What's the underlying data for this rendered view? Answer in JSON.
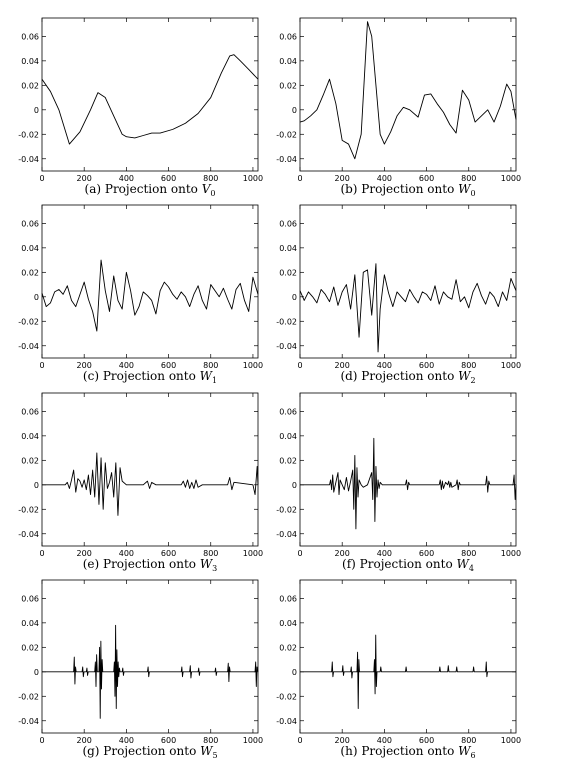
{
  "chart_data": [
    {
      "type": "line",
      "caption": {
        "prefix": "(a) Projection onto ",
        "symbol": "V",
        "subscript": "0"
      },
      "xlim": [
        0,
        1024
      ],
      "ylim": [
        -0.05,
        0.075
      ],
      "xticks": [
        0,
        200,
        400,
        600,
        800,
        1000
      ],
      "yticks": [
        -0.04,
        -0.02,
        0,
        0.02,
        0.04,
        0.06
      ],
      "x": [
        0,
        40,
        80,
        130,
        180,
        230,
        265,
        300,
        340,
        380,
        400,
        440,
        480,
        520,
        560,
        620,
        680,
        740,
        800,
        850,
        890,
        910,
        940,
        980,
        1024
      ],
      "y": [
        0.025,
        0.015,
        0.0,
        -0.028,
        -0.018,
        0.0,
        0.014,
        0.01,
        -0.005,
        -0.02,
        -0.022,
        -0.023,
        -0.021,
        -0.019,
        -0.019,
        -0.016,
        -0.011,
        -0.003,
        0.01,
        0.03,
        0.044,
        0.045,
        0.04,
        0.033,
        0.025
      ]
    },
    {
      "type": "line",
      "caption": {
        "prefix": "(b) Projection onto ",
        "symbol": "W",
        "subscript": "0"
      },
      "xlim": [
        0,
        1024
      ],
      "ylim": [
        -0.05,
        0.075
      ],
      "xticks": [
        0,
        200,
        400,
        600,
        800,
        1000
      ],
      "yticks": [
        -0.04,
        -0.02,
        0,
        0.02,
        0.04,
        0.06
      ],
      "x": [
        0,
        20,
        50,
        80,
        110,
        140,
        170,
        200,
        230,
        260,
        290,
        320,
        340,
        360,
        380,
        400,
        430,
        460,
        490,
        520,
        560,
        590,
        620,
        650,
        680,
        710,
        740,
        770,
        800,
        830,
        860,
        890,
        920,
        950,
        980,
        1000,
        1024
      ],
      "y": [
        -0.01,
        -0.009,
        -0.005,
        0.0,
        0.012,
        0.025,
        0.005,
        -0.025,
        -0.028,
        -0.04,
        -0.02,
        0.072,
        0.06,
        0.02,
        -0.02,
        -0.028,
        -0.018,
        -0.005,
        0.002,
        0.0,
        -0.006,
        0.012,
        0.013,
        0.005,
        -0.002,
        -0.012,
        -0.019,
        0.016,
        0.008,
        -0.01,
        -0.005,
        0.0,
        -0.01,
        0.003,
        0.021,
        0.015,
        -0.008
      ]
    },
    {
      "type": "line",
      "caption": {
        "prefix": "(c) Projection onto ",
        "symbol": "W",
        "subscript": "1"
      },
      "xlim": [
        0,
        1024
      ],
      "ylim": [
        -0.05,
        0.075
      ],
      "xticks": [
        0,
        200,
        400,
        600,
        800,
        1000
      ],
      "yticks": [
        -0.04,
        -0.02,
        0,
        0.02,
        0.04,
        0.06
      ],
      "x": [
        0,
        20,
        40,
        60,
        80,
        100,
        120,
        140,
        160,
        180,
        200,
        220,
        240,
        260,
        280,
        300,
        320,
        340,
        360,
        380,
        400,
        420,
        440,
        460,
        480,
        500,
        520,
        540,
        560,
        580,
        600,
        620,
        640,
        660,
        680,
        700,
        720,
        740,
        760,
        780,
        800,
        820,
        840,
        860,
        880,
        900,
        920,
        940,
        960,
        980,
        1000,
        1024
      ],
      "y": [
        0.003,
        -0.008,
        -0.005,
        0.004,
        0.006,
        0.002,
        0.009,
        -0.003,
        -0.008,
        0.002,
        0.012,
        -0.002,
        -0.012,
        -0.028,
        0.03,
        0.005,
        -0.012,
        0.017,
        -0.003,
        -0.01,
        0.02,
        0.005,
        -0.015,
        -0.008,
        0.004,
        0.001,
        -0.003,
        -0.014,
        0.005,
        0.012,
        0.008,
        0.002,
        -0.002,
        0.004,
        0.0,
        -0.008,
        0.002,
        0.009,
        -0.003,
        -0.01,
        0.01,
        0.005,
        0.0,
        0.007,
        -0.002,
        -0.01,
        0.006,
        0.011,
        -0.003,
        -0.012,
        0.016,
        0.002
      ]
    },
    {
      "type": "line",
      "caption": {
        "prefix": "(d) Projection onto ",
        "symbol": "W",
        "subscript": "2"
      },
      "xlim": [
        0,
        1024
      ],
      "ylim": [
        -0.05,
        0.075
      ],
      "xticks": [
        0,
        200,
        400,
        600,
        800,
        1000
      ],
      "yticks": [
        -0.04,
        -0.02,
        0,
        0.02,
        0.04,
        0.06
      ],
      "x": [
        0,
        20,
        40,
        60,
        80,
        100,
        120,
        140,
        160,
        180,
        200,
        220,
        240,
        260,
        280,
        300,
        320,
        340,
        360,
        370,
        380,
        400,
        420,
        440,
        460,
        480,
        500,
        520,
        540,
        560,
        580,
        600,
        620,
        640,
        660,
        680,
        700,
        720,
        740,
        760,
        780,
        800,
        820,
        840,
        860,
        880,
        900,
        920,
        940,
        960,
        980,
        1000,
        1024
      ],
      "y": [
        0.005,
        -0.003,
        0.004,
        0.0,
        -0.005,
        0.006,
        0.002,
        -0.004,
        0.008,
        -0.007,
        0.004,
        0.01,
        -0.01,
        0.018,
        -0.033,
        0.02,
        0.022,
        -0.015,
        0.027,
        -0.045,
        -0.01,
        0.018,
        0.003,
        -0.008,
        0.004,
        0.0,
        -0.004,
        0.006,
        0.0,
        -0.005,
        0.004,
        0.002,
        -0.003,
        0.009,
        -0.006,
        0.004,
        0.0,
        -0.002,
        0.014,
        -0.004,
        0.0,
        -0.009,
        0.004,
        0.011,
        0.001,
        -0.006,
        0.004,
        0.0,
        -0.008,
        0.004,
        -0.003,
        0.015,
        0.005
      ]
    },
    {
      "type": "line",
      "caption": {
        "prefix": "(e) Projection onto ",
        "symbol": "W",
        "subscript": "3"
      },
      "xlim": [
        0,
        1024
      ],
      "ylim": [
        -0.05,
        0.075
      ],
      "xticks": [
        0,
        200,
        400,
        600,
        800,
        1000
      ],
      "yticks": [
        -0.04,
        -0.02,
        0,
        0.02,
        0.04,
        0.06
      ],
      "x": [
        0,
        110,
        120,
        130,
        140,
        150,
        160,
        170,
        180,
        190,
        200,
        210,
        220,
        230,
        240,
        250,
        260,
        270,
        280,
        290,
        300,
        310,
        320,
        330,
        340,
        350,
        360,
        370,
        380,
        400,
        440,
        480,
        500,
        510,
        520,
        540,
        660,
        670,
        680,
        690,
        700,
        710,
        720,
        730,
        740,
        760,
        880,
        890,
        900,
        910,
        1000,
        1010,
        1020,
        1024
      ],
      "y": [
        0,
        0,
        0.002,
        -0.003,
        0.004,
        0.012,
        -0.006,
        0.005,
        0.003,
        -0.002,
        0.004,
        -0.004,
        0.008,
        -0.008,
        0.012,
        -0.01,
        0.026,
        -0.016,
        0.022,
        -0.02,
        0.018,
        -0.003,
        0.002,
        0.01,
        -0.01,
        0.018,
        -0.025,
        0.014,
        0.003,
        0.0,
        0,
        0,
        0.003,
        -0.003,
        0.002,
        0,
        0,
        0.003,
        -0.002,
        0.004,
        -0.003,
        0.002,
        -0.003,
        0.004,
        -0.002,
        0,
        0,
        0.006,
        -0.004,
        0.002,
        0.0,
        -0.008,
        0.015,
        0.0
      ]
    },
    {
      "type": "line",
      "caption": {
        "prefix": "(f) Projection onto ",
        "symbol": "W",
        "subscript": "4"
      },
      "xlim": [
        0,
        1024
      ],
      "ylim": [
        -0.05,
        0.075
      ],
      "xticks": [
        0,
        200,
        400,
        600,
        800,
        1000
      ],
      "yticks": [
        -0.04,
        -0.02,
        0,
        0.02,
        0.04,
        0.06
      ],
      "x": [
        0,
        140,
        145,
        150,
        155,
        160,
        170,
        180,
        185,
        190,
        200,
        210,
        220,
        230,
        240,
        250,
        255,
        260,
        265,
        270,
        275,
        280,
        290,
        300,
        320,
        340,
        345,
        350,
        355,
        360,
        365,
        370,
        375,
        380,
        390,
        400,
        420,
        500,
        505,
        510,
        515,
        520,
        660,
        665,
        670,
        675,
        680,
        690,
        700,
        705,
        710,
        715,
        720,
        740,
        745,
        750,
        755,
        760,
        880,
        885,
        890,
        895,
        900,
        1010,
        1015,
        1020,
        1024
      ],
      "y": [
        0,
        0,
        0.004,
        -0.004,
        0.008,
        -0.006,
        0.002,
        0.01,
        -0.008,
        0.004,
        0.0,
        -0.004,
        0.006,
        -0.005,
        0.003,
        0.012,
        -0.02,
        0.024,
        -0.036,
        0.014,
        -0.01,
        0.004,
        0.0,
        -0.002,
        0,
        0.01,
        -0.012,
        0.038,
        -0.03,
        0.015,
        -0.01,
        0.004,
        -0.003,
        0.002,
        0.0,
        0,
        0,
        0,
        0.004,
        -0.004,
        0.002,
        0,
        0,
        0.004,
        -0.004,
        0.003,
        -0.003,
        0.002,
        0,
        0.003,
        -0.002,
        0.002,
        -0.002,
        0,
        0.004,
        -0.004,
        0.002,
        0,
        0,
        0.007,
        -0.006,
        0.003,
        0,
        0,
        0.008,
        -0.012,
        0.0
      ]
    },
    {
      "type": "line",
      "caption": {
        "prefix": "(g) Projection onto ",
        "symbol": "W",
        "subscript": "5"
      },
      "xlim": [
        0,
        1024
      ],
      "ylim": [
        -0.05,
        0.075
      ],
      "xticks": [
        0,
        200,
        400,
        600,
        800,
        1000
      ],
      "yticks": [
        -0.04,
        -0.02,
        0,
        0.02,
        0.04,
        0.06
      ],
      "x": [
        0,
        150,
        153,
        156,
        159,
        162,
        190,
        193,
        196,
        199,
        210,
        213,
        216,
        219,
        250,
        253,
        256,
        259,
        262,
        270,
        273,
        276,
        279,
        282,
        285,
        288,
        340,
        343,
        346,
        349,
        352,
        355,
        358,
        361,
        364,
        367,
        370,
        380,
        383,
        386,
        389,
        500,
        503,
        506,
        509,
        660,
        663,
        666,
        669,
        700,
        703,
        706,
        709,
        740,
        743,
        746,
        749,
        820,
        823,
        826,
        829,
        880,
        883,
        886,
        889,
        892,
        1010,
        1013,
        1016,
        1019,
        1024
      ],
      "y": [
        0,
        0,
        0.012,
        -0.01,
        0.004,
        0,
        0,
        0.004,
        -0.004,
        0,
        0,
        0.003,
        -0.003,
        0,
        0,
        0.008,
        -0.012,
        0.014,
        0,
        0,
        0.02,
        -0.038,
        0.025,
        -0.014,
        0.01,
        0,
        0,
        0.008,
        -0.02,
        0.038,
        -0.03,
        0.018,
        -0.012,
        0.008,
        -0.004,
        0.003,
        0,
        0,
        0.003,
        -0.003,
        0,
        0,
        0.004,
        -0.004,
        0,
        0,
        0.004,
        -0.004,
        0,
        0,
        0.005,
        -0.005,
        0,
        0,
        0.003,
        -0.003,
        0,
        0,
        0.003,
        -0.003,
        0,
        0,
        0.007,
        -0.008,
        0.004,
        0,
        0,
        0.008,
        -0.012,
        0.004,
        0
      ]
    },
    {
      "type": "line",
      "caption": {
        "prefix": "(h) Projection onto ",
        "symbol": "W",
        "subscript": "6"
      },
      "xlim": [
        0,
        1024
      ],
      "ylim": [
        -0.05,
        0.075
      ],
      "xticks": [
        0,
        200,
        400,
        600,
        800,
        1000
      ],
      "yticks": [
        -0.04,
        -0.02,
        0,
        0.02,
        0.04,
        0.06
      ],
      "x": [
        0,
        150,
        153,
        156,
        159,
        200,
        203,
        206,
        209,
        240,
        243,
        246,
        249,
        270,
        273,
        276,
        279,
        282,
        350,
        353,
        356,
        359,
        362,
        365,
        380,
        383,
        386,
        500,
        503,
        506,
        660,
        663,
        666,
        700,
        703,
        706,
        740,
        743,
        746,
        820,
        823,
        826,
        880,
        883,
        886,
        889,
        1024
      ],
      "y": [
        0,
        0,
        0.008,
        -0.004,
        0,
        0,
        0.005,
        -0.003,
        0,
        0,
        0.004,
        -0.005,
        0,
        0,
        0.016,
        -0.03,
        0.01,
        0,
        0,
        0.01,
        -0.018,
        0.03,
        -0.012,
        0,
        0,
        0.004,
        0,
        0,
        0.004,
        0,
        0,
        0.004,
        0,
        0,
        0.005,
        0,
        0,
        0.004,
        0,
        0,
        0.004,
        0,
        0,
        0.008,
        -0.004,
        0,
        0
      ]
    }
  ]
}
